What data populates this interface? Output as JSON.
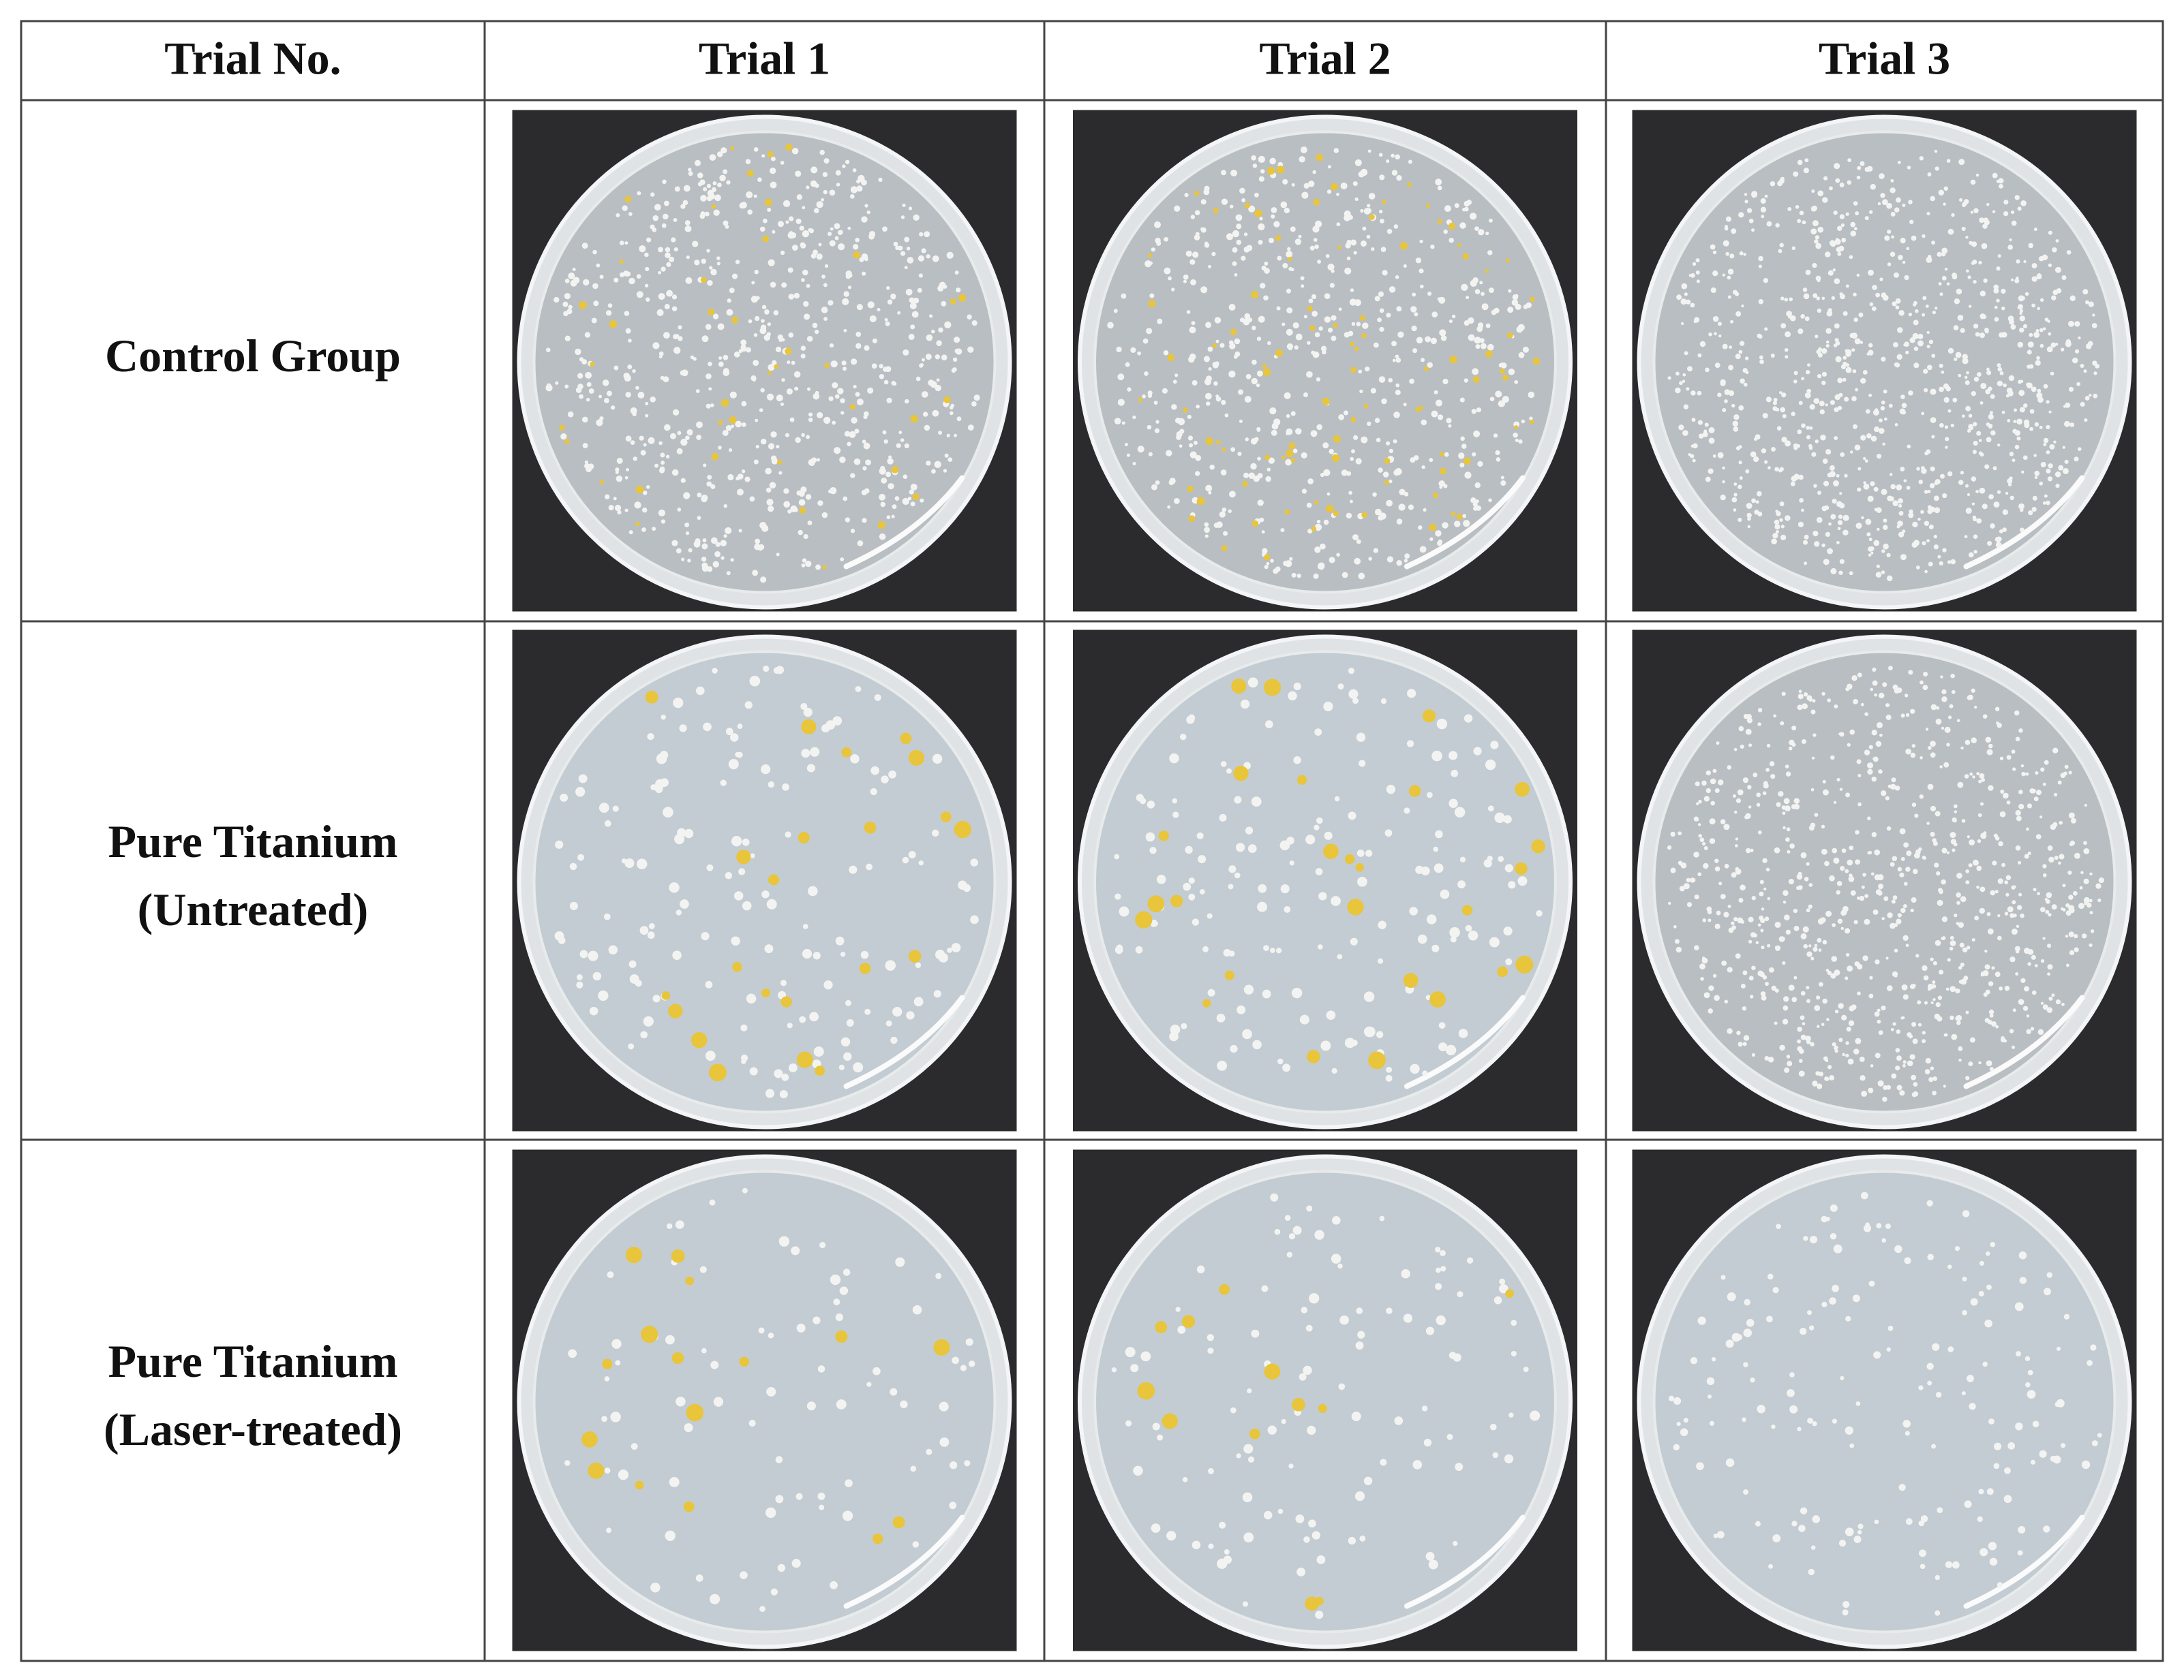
{
  "table": {
    "header": [
      "Trial No.",
      "Trial 1",
      "Trial 2",
      "Trial 3"
    ],
    "rows": [
      {
        "label": [
          "Control Group"
        ]
      },
      {
        "label": [
          "Pure Titanium",
          "(Untreated)"
        ]
      },
      {
        "label": [
          "Pure Titanium",
          "(Laser-treated)"
        ]
      }
    ]
  }
}
